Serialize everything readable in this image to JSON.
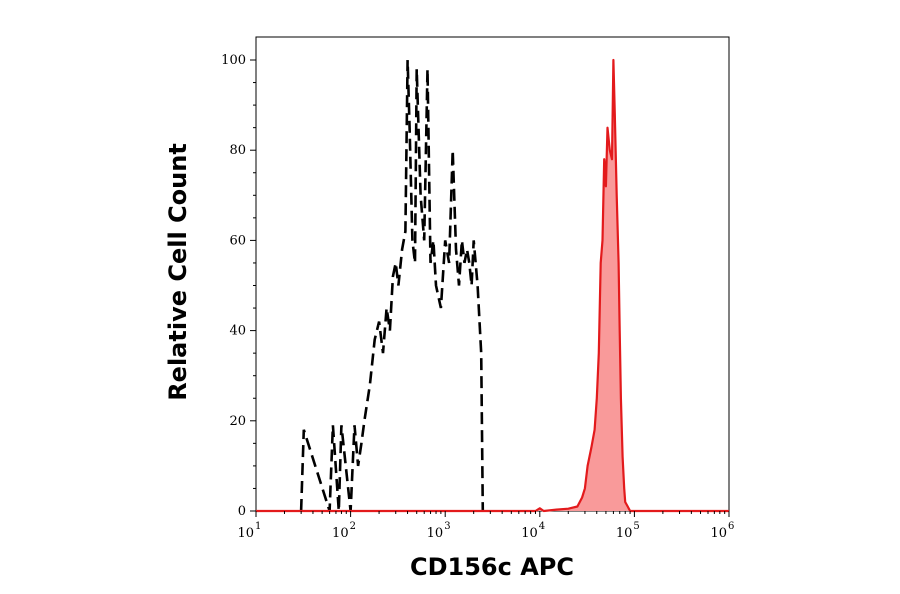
{
  "chart_data": {
    "type": "area",
    "xlabel": "CD156c APC",
    "ylabel": "Relative Cell Count",
    "xscale": "log",
    "xlim": [
      10,
      1000000
    ],
    "ylim": [
      0,
      100
    ],
    "x_ticks": [
      {
        "base": "10",
        "exp": "1",
        "value": 10
      },
      {
        "base": "10",
        "exp": "2",
        "value": 100
      },
      {
        "base": "10",
        "exp": "3",
        "value": 1000
      },
      {
        "base": "10",
        "exp": "4",
        "value": 10000
      },
      {
        "base": "10",
        "exp": "5",
        "value": 100000
      },
      {
        "base": "10",
        "exp": "6",
        "value": 1000000
      }
    ],
    "y_ticks": [
      {
        "label": "0",
        "value": 0
      },
      {
        "label": "20",
        "value": 20
      },
      {
        "label": "40",
        "value": 40
      },
      {
        "label": "60",
        "value": 60
      },
      {
        "label": "80",
        "value": 80
      },
      {
        "label": "100",
        "value": 100
      }
    ],
    "series": [
      {
        "style": "dashed",
        "color": "#000000",
        "x": [
          30,
          32,
          60,
          65,
          75,
          80,
          100,
          110,
          120,
          130,
          140,
          160,
          180,
          200,
          220,
          240,
          260,
          280,
          300,
          320,
          350,
          380,
          400,
          420,
          450,
          480,
          500,
          550,
          600,
          650,
          700,
          750,
          800,
          900,
          1000,
          1100,
          1200,
          1300,
          1400,
          1500,
          1600,
          1700,
          1800,
          1900,
          2000,
          2200,
          2400,
          2500
        ],
        "y": [
          0,
          18,
          0,
          19,
          0,
          19,
          0,
          19,
          10,
          15,
          20,
          28,
          38,
          42,
          35,
          45,
          40,
          52,
          55,
          50,
          58,
          62,
          100,
          85,
          60,
          55,
          98,
          70,
          60,
          98,
          55,
          60,
          50,
          45,
          60,
          55,
          80,
          58,
          50,
          60,
          55,
          58,
          55,
          50,
          60,
          50,
          35,
          0
        ]
      },
      {
        "style": "filled",
        "color": "#e31a1c",
        "fill": "#f99a9a",
        "x": [
          10,
          9000,
          10000,
          11000,
          15000,
          20000,
          25000,
          28000,
          30000,
          32000,
          35000,
          38000,
          40000,
          42000,
          44000,
          46000,
          48000,
          50000,
          52000,
          55000,
          58000,
          60000,
          62000,
          65000,
          68000,
          70000,
          72000,
          75000,
          78000,
          80000,
          85000,
          90000,
          100000,
          1000000
        ],
        "y": [
          0,
          0,
          0.6,
          0,
          0.3,
          0.5,
          1,
          3,
          5,
          10,
          14,
          18,
          25,
          35,
          55,
          60,
          78,
          72,
          85,
          80,
          78,
          100,
          88,
          70,
          55,
          40,
          25,
          12,
          5,
          2,
          1,
          0,
          0,
          0
        ]
      }
    ]
  }
}
